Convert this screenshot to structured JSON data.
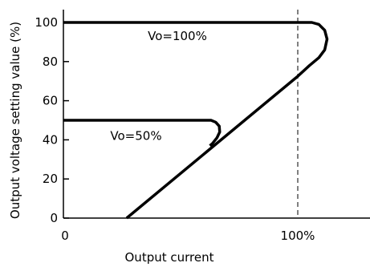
{
  "chart_data": {
    "type": "line",
    "ylabel": "Output voltage setting value (%)",
    "xlabel": "Output current",
    "xlim": [
      0,
      120
    ],
    "ylim": [
      0,
      105
    ],
    "y_ticks": [
      "0",
      "20",
      "40",
      "60",
      "80",
      "100"
    ],
    "y_tick_values": [
      0,
      20,
      40,
      60,
      80,
      100
    ],
    "x_ticks": [
      {
        "label": "0",
        "value": 0
      },
      {
        "label": "100%",
        "value": 100
      }
    ],
    "reference_line": {
      "x": 100,
      "style": "dashed"
    },
    "series": [
      {
        "annotation": "Vo=100%",
        "annotation_at": [
          36,
          91
        ],
        "points": [
          [
            0,
            100
          ],
          [
            106,
            100
          ],
          [
            109,
            99
          ],
          [
            111.5,
            96
          ],
          [
            112.5,
            91.5
          ],
          [
            111.5,
            86
          ],
          [
            109,
            82
          ],
          [
            105,
            78
          ],
          [
            100,
            72.5
          ],
          [
            27,
            0
          ]
        ]
      },
      {
        "annotation": "Vo=50%",
        "annotation_at": [
          20,
          40
        ],
        "points": [
          [
            0,
            50
          ],
          [
            63,
            50
          ],
          [
            65,
            49
          ],
          [
            66.5,
            47
          ],
          [
            66.7,
            44
          ],
          [
            65.5,
            41
          ],
          [
            63.5,
            38
          ],
          [
            62.5,
            37
          ]
        ]
      }
    ]
  },
  "colors": {
    "line": "#000000",
    "axis": "#000000",
    "background": "#ffffff"
  }
}
